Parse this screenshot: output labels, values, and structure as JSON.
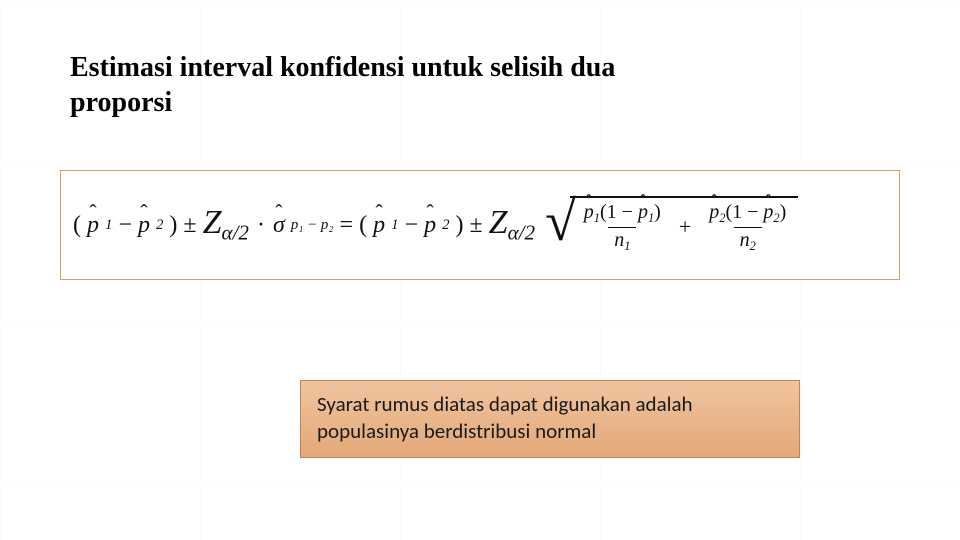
{
  "title": "Estimasi interval konfidensi untuk selisih dua proporsi",
  "formula": {
    "p": "p",
    "sub1": "1",
    "sub2": "2",
    "minus": "−",
    "pm": "±",
    "Z": "Z",
    "alpha_half": "α/2",
    "dot": "·",
    "sigma": "σ",
    "sigma_sub": "p₁ − p₂",
    "eq": "=",
    "one_minus_open": "(1 − ",
    "close_paren": ")",
    "n": "n",
    "plus": "+"
  },
  "note": {
    "line1": "Syarat rumus diatas dapat digunakan adalah",
    "line2": "populasinya berdistribusi normal"
  },
  "colors": {
    "formula_border": "#d8a060",
    "note_bg_top": "#f0c4a0",
    "note_bg_bottom": "#e3a878",
    "note_border": "#c28452",
    "text": "#1a1a1a"
  }
}
